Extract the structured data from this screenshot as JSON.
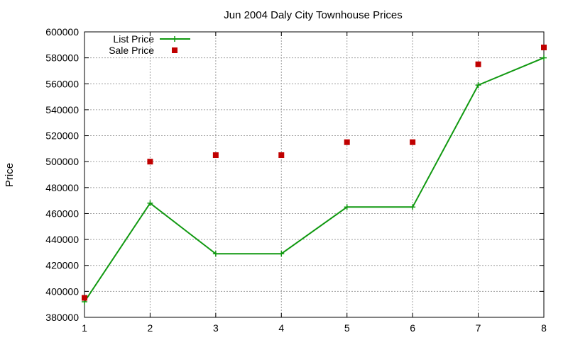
{
  "chart_data": {
    "type": "line",
    "title": "Jun 2004 Daly City Townhouse Prices",
    "xlabel": "",
    "ylabel": "Price",
    "x": [
      1,
      2,
      3,
      4,
      5,
      6,
      7,
      8
    ],
    "xlim": [
      1,
      8
    ],
    "ylim": [
      380000,
      600000
    ],
    "yticks": [
      380000,
      400000,
      420000,
      440000,
      460000,
      480000,
      500000,
      520000,
      540000,
      560000,
      580000,
      600000
    ],
    "grid": true,
    "legend_position": "top-left",
    "series": [
      {
        "name": "List Price",
        "style": "line-points",
        "color": "#119911",
        "values": [
          392000,
          468000,
          429000,
          429000,
          465000,
          465000,
          559000,
          580000
        ]
      },
      {
        "name": "Sale Price",
        "style": "points",
        "color": "#c00000",
        "values": [
          395000,
          500000,
          505000,
          505000,
          515000,
          515000,
          575000,
          588000
        ]
      }
    ]
  }
}
